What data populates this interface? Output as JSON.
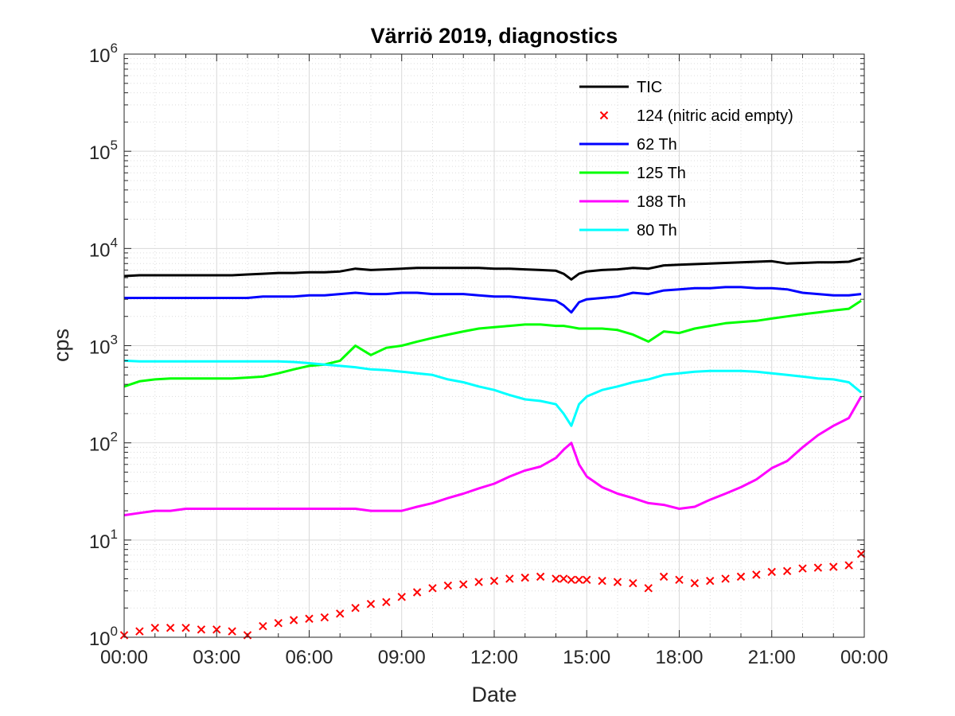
{
  "chart_data": {
    "type": "line",
    "title": "Värriö 2019, diagnostics",
    "xlabel": "Date",
    "ylabel": "cps",
    "x_ticks": [
      "00:00",
      "03:00",
      "06:00",
      "09:00",
      "12:00",
      "15:00",
      "18:00",
      "21:00",
      "00:00"
    ],
    "y_scale": "log",
    "y_tick_base": "10",
    "y_tick_exponents": [
      "0",
      "1",
      "2",
      "3",
      "4",
      "5",
      "6"
    ],
    "ylim": [
      1,
      1000000
    ],
    "xlim_hours": [
      0,
      24
    ],
    "grid": true,
    "legend_placement": "top-right",
    "x_hours": [
      0,
      0.5,
      1,
      1.5,
      2,
      2.5,
      3,
      3.5,
      4,
      4.5,
      5,
      5.5,
      6,
      6.5,
      7,
      7.5,
      8,
      8.5,
      9,
      9.5,
      10,
      10.5,
      11,
      11.5,
      12,
      12.5,
      13,
      13.5,
      14,
      14.25,
      14.5,
      14.75,
      15,
      15.5,
      16,
      16.5,
      17,
      17.5,
      18,
      18.5,
      19,
      19.5,
      20,
      20.5,
      21,
      21.5,
      22,
      22.5,
      23,
      23.5,
      23.9
    ],
    "series": [
      {
        "name": "TIC",
        "color": "#000000",
        "style": "line",
        "values": [
          5200,
          5300,
          5300,
          5300,
          5300,
          5300,
          5300,
          5300,
          5400,
          5500,
          5600,
          5600,
          5700,
          5700,
          5800,
          6200,
          6000,
          6100,
          6200,
          6300,
          6300,
          6300,
          6300,
          6300,
          6200,
          6200,
          6100,
          6000,
          5900,
          5500,
          4800,
          5500,
          5800,
          6000,
          6100,
          6300,
          6200,
          6700,
          6800,
          6900,
          7000,
          7100,
          7200,
          7300,
          7400,
          7000,
          7100,
          7200,
          7200,
          7300,
          7900
        ]
      },
      {
        "name": "124 (nitric acid empty)",
        "color": "#ff0000",
        "style": "marker",
        "values": [
          1.05,
          1.15,
          1.25,
          1.25,
          1.25,
          1.2,
          1.2,
          1.15,
          1.05,
          1.3,
          1.4,
          1.5,
          1.55,
          1.6,
          1.75,
          2.0,
          2.2,
          2.3,
          2.6,
          2.9,
          3.2,
          3.4,
          3.5,
          3.7,
          3.8,
          4.0,
          4.1,
          4.2,
          4.0,
          4.0,
          3.9,
          3.9,
          3.9,
          3.8,
          3.7,
          3.6,
          3.2,
          4.2,
          3.9,
          3.6,
          3.8,
          4.0,
          4.2,
          4.4,
          4.7,
          4.8,
          5.1,
          5.2,
          5.3,
          5.5,
          7.2
        ]
      },
      {
        "name": "62 Th",
        "color": "#0000ff",
        "style": "line",
        "values": [
          3100,
          3100,
          3100,
          3100,
          3100,
          3100,
          3100,
          3100,
          3100,
          3200,
          3200,
          3200,
          3300,
          3300,
          3400,
          3500,
          3400,
          3400,
          3500,
          3500,
          3400,
          3400,
          3400,
          3300,
          3200,
          3200,
          3100,
          3000,
          2900,
          2600,
          2200,
          2800,
          3000,
          3100,
          3200,
          3500,
          3400,
          3700,
          3800,
          3900,
          3900,
          4000,
          4000,
          3900,
          3900,
          3800,
          3500,
          3400,
          3300,
          3300,
          3400
        ]
      },
      {
        "name": "125 Th",
        "color": "#00ff00",
        "style": "line",
        "values": [
          380,
          430,
          450,
          460,
          460,
          460,
          460,
          460,
          470,
          480,
          520,
          570,
          620,
          640,
          700,
          1000,
          800,
          950,
          1000,
          1100,
          1200,
          1300,
          1400,
          1500,
          1550,
          1600,
          1650,
          1650,
          1600,
          1600,
          1550,
          1500,
          1500,
          1500,
          1450,
          1300,
          1100,
          1400,
          1350,
          1500,
          1600,
          1700,
          1750,
          1800,
          1900,
          2000,
          2100,
          2200,
          2300,
          2400,
          2900
        ]
      },
      {
        "name": "188 Th",
        "color": "#ff00ff",
        "style": "line",
        "values": [
          18,
          19,
          20,
          20,
          21,
          21,
          21,
          21,
          21,
          21,
          21,
          21,
          21,
          21,
          21,
          21,
          20,
          20,
          20,
          22,
          24,
          27,
          30,
          34,
          38,
          45,
          52,
          57,
          70,
          85,
          100,
          60,
          45,
          35,
          30,
          27,
          24,
          23,
          21,
          22,
          26,
          30,
          35,
          42,
          55,
          65,
          90,
          120,
          150,
          180,
          300
        ]
      },
      {
        "name": "80 Th",
        "color": "#00ffff",
        "style": "line",
        "values": [
          700,
          690,
          690,
          690,
          690,
          690,
          690,
          690,
          690,
          690,
          690,
          680,
          660,
          640,
          620,
          600,
          570,
          560,
          540,
          520,
          500,
          450,
          420,
          380,
          350,
          310,
          280,
          270,
          250,
          200,
          150,
          250,
          300,
          350,
          380,
          420,
          450,
          500,
          520,
          540,
          550,
          550,
          550,
          540,
          520,
          500,
          480,
          460,
          450,
          420,
          330
        ]
      }
    ]
  }
}
